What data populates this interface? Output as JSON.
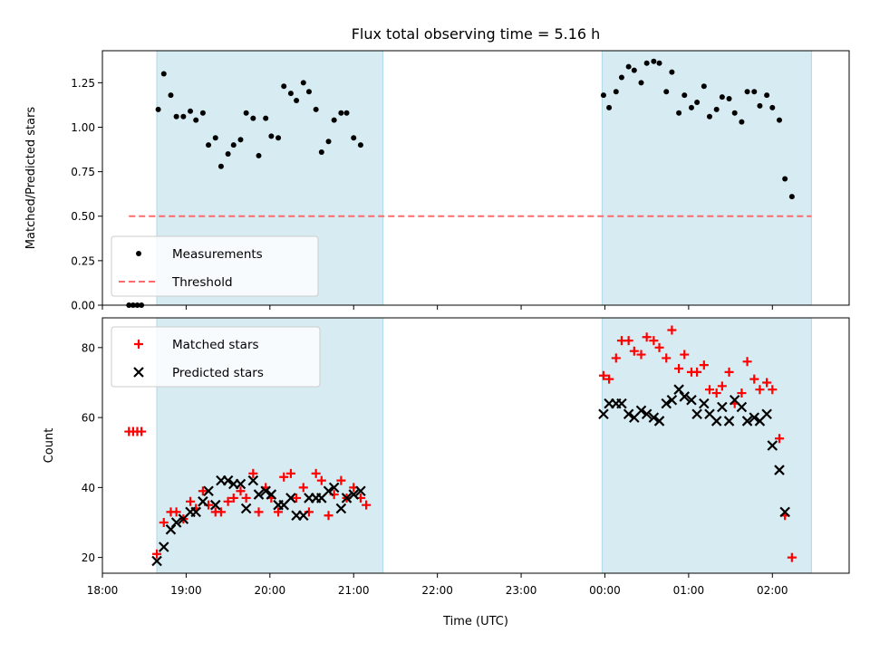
{
  "title": "Flux total observing time = 5.16 h",
  "colors": {
    "shade": "#add8e6",
    "measurement": "#000000",
    "threshold": "#ff6b6b",
    "matched": "#ff0000",
    "predicted": "#000000"
  },
  "chart_data": [
    {
      "type": "scatter",
      "ylabel": "Matched/Predicted stars",
      "xlabel": "",
      "xlim": [
        "18:00",
        "02:55"
      ],
      "ylim": [
        0,
        1.43
      ],
      "yticks": [
        "0.00",
        "0.25",
        "0.50",
        "0.75",
        "1.00",
        "1.25"
      ],
      "xticks": [
        "18:00",
        "19:00",
        "20:00",
        "21:00",
        "22:00",
        "23:00",
        "00:00",
        "01:00",
        "02:00"
      ],
      "show_xtick_labels": false,
      "shaded_intervals": [
        [
          "18:39",
          "21:21"
        ],
        [
          "23:58",
          "02:28"
        ]
      ],
      "legend": "lower-left",
      "series": [
        {
          "name": "Measurements",
          "marker": "dot",
          "points": [
            [
              "18:19",
              0.0
            ],
            [
              "18:22",
              0.0
            ],
            [
              "18:25",
              0.0
            ],
            [
              "18:28",
              0.0
            ],
            [
              "18:40",
              1.1
            ],
            [
              "18:44",
              1.3
            ],
            [
              "18:49",
              1.18
            ],
            [
              "18:53",
              1.06
            ],
            [
              "18:58",
              1.06
            ],
            [
              "19:03",
              1.09
            ],
            [
              "19:07",
              1.04
            ],
            [
              "19:12",
              1.08
            ],
            [
              "19:16",
              0.9
            ],
            [
              "19:21",
              0.94
            ],
            [
              "19:25",
              0.78
            ],
            [
              "19:30",
              0.85
            ],
            [
              "19:34",
              0.9
            ],
            [
              "19:39",
              0.93
            ],
            [
              "19:43",
              1.08
            ],
            [
              "19:48",
              1.05
            ],
            [
              "19:52",
              0.84
            ],
            [
              "19:57",
              1.05
            ],
            [
              "20:01",
              0.95
            ],
            [
              "20:06",
              0.94
            ],
            [
              "20:10",
              1.23
            ],
            [
              "20:15",
              1.19
            ],
            [
              "20:19",
              1.15
            ],
            [
              "20:24",
              1.25
            ],
            [
              "20:28",
              1.2
            ],
            [
              "20:33",
              1.1
            ],
            [
              "20:37",
              0.86
            ],
            [
              "20:42",
              0.92
            ],
            [
              "20:46",
              1.04
            ],
            [
              "20:51",
              1.08
            ],
            [
              "20:55",
              1.08
            ],
            [
              "21:00",
              0.94
            ],
            [
              "21:05",
              0.9
            ],
            [
              "23:59",
              1.18
            ],
            [
              "00:03",
              1.11
            ],
            [
              "00:08",
              1.2
            ],
            [
              "00:12",
              1.28
            ],
            [
              "00:17",
              1.34
            ],
            [
              "00:21",
              1.32
            ],
            [
              "00:26",
              1.25
            ],
            [
              "00:30",
              1.36
            ],
            [
              "00:35",
              1.37
            ],
            [
              "00:39",
              1.36
            ],
            [
              "00:44",
              1.2
            ],
            [
              "00:48",
              1.31
            ],
            [
              "00:53",
              1.08
            ],
            [
              "00:57",
              1.18
            ],
            [
              "01:02",
              1.11
            ],
            [
              "01:06",
              1.14
            ],
            [
              "01:11",
              1.23
            ],
            [
              "01:15",
              1.06
            ],
            [
              "01:20",
              1.1
            ],
            [
              "01:24",
              1.17
            ],
            [
              "01:29",
              1.16
            ],
            [
              "01:33",
              1.08
            ],
            [
              "01:38",
              1.03
            ],
            [
              "01:42",
              1.2
            ],
            [
              "01:47",
              1.2
            ],
            [
              "01:51",
              1.12
            ],
            [
              "01:56",
              1.18
            ],
            [
              "02:00",
              1.11
            ],
            [
              "02:05",
              1.04
            ],
            [
              "02:09",
              0.71
            ],
            [
              "02:14",
              0.61
            ]
          ]
        },
        {
          "name": "Threshold",
          "marker": "dashed-line",
          "points": [
            [
              "18:19",
              0.5
            ],
            [
              "02:28",
              0.5
            ]
          ]
        }
      ]
    },
    {
      "type": "scatter",
      "ylabel": "Count",
      "xlabel": "Time (UTC)",
      "xlim": [
        "18:00",
        "02:55"
      ],
      "ylim": [
        15.5,
        88.5
      ],
      "yticks": [
        "20",
        "40",
        "60",
        "80"
      ],
      "xticks": [
        "18:00",
        "19:00",
        "20:00",
        "21:00",
        "22:00",
        "23:00",
        "00:00",
        "01:00",
        "02:00"
      ],
      "show_xtick_labels": true,
      "shaded_intervals": [
        [
          "18:39",
          "21:21"
        ],
        [
          "23:58",
          "02:28"
        ]
      ],
      "legend": "upper-left",
      "series": [
        {
          "name": "Matched stars",
          "marker": "plus",
          "points": [
            [
              "18:19",
              56
            ],
            [
              "18:22",
              56
            ],
            [
              "18:25",
              56
            ],
            [
              "18:28",
              56
            ],
            [
              "18:39",
              21
            ],
            [
              "18:44",
              30
            ],
            [
              "18:49",
              33
            ],
            [
              "18:53",
              33
            ],
            [
              "18:58",
              31
            ],
            [
              "19:03",
              36
            ],
            [
              "19:07",
              34
            ],
            [
              "19:12",
              39
            ],
            [
              "19:16",
              35
            ],
            [
              "19:21",
              33
            ],
            [
              "19:25",
              33
            ],
            [
              "19:30",
              36
            ],
            [
              "19:34",
              37
            ],
            [
              "19:39",
              39
            ],
            [
              "19:43",
              37
            ],
            [
              "19:48",
              44
            ],
            [
              "19:52",
              33
            ],
            [
              "19:57",
              40
            ],
            [
              "20:01",
              37
            ],
            [
              "20:06",
              33
            ],
            [
              "20:10",
              43
            ],
            [
              "20:15",
              44
            ],
            [
              "20:19",
              37
            ],
            [
              "20:24",
              40
            ],
            [
              "20:28",
              33
            ],
            [
              "20:33",
              44
            ],
            [
              "20:37",
              42
            ],
            [
              "20:42",
              32
            ],
            [
              "20:46",
              38
            ],
            [
              "20:51",
              42
            ],
            [
              "20:55",
              37
            ],
            [
              "21:00",
              40
            ],
            [
              "21:05",
              37
            ],
            [
              "21:09",
              35
            ],
            [
              "23:59",
              72
            ],
            [
              "00:03",
              71
            ],
            [
              "00:08",
              77
            ],
            [
              "00:12",
              82
            ],
            [
              "00:17",
              82
            ],
            [
              "00:21",
              79
            ],
            [
              "00:26",
              78
            ],
            [
              "00:30",
              83
            ],
            [
              "00:35",
              82
            ],
            [
              "00:39",
              80
            ],
            [
              "00:44",
              77
            ],
            [
              "00:48",
              85
            ],
            [
              "00:53",
              74
            ],
            [
              "00:57",
              78
            ],
            [
              "01:02",
              73
            ],
            [
              "01:06",
              73
            ],
            [
              "01:11",
              75
            ],
            [
              "01:15",
              68
            ],
            [
              "01:20",
              67
            ],
            [
              "01:24",
              69
            ],
            [
              "01:29",
              73
            ],
            [
              "01:33",
              64
            ],
            [
              "01:38",
              67
            ],
            [
              "01:42",
              76
            ],
            [
              "01:47",
              71
            ],
            [
              "01:51",
              68
            ],
            [
              "01:56",
              70
            ],
            [
              "02:00",
              68
            ],
            [
              "02:05",
              54
            ],
            [
              "02:09",
              32
            ],
            [
              "02:14",
              20
            ]
          ]
        },
        {
          "name": "Predicted stars",
          "marker": "cross",
          "points": [
            [
              "18:39",
              19
            ],
            [
              "18:44",
              23
            ],
            [
              "18:49",
              28
            ],
            [
              "18:53",
              30
            ],
            [
              "18:58",
              31
            ],
            [
              "19:03",
              33
            ],
            [
              "19:07",
              33
            ],
            [
              "19:12",
              36
            ],
            [
              "19:16",
              39
            ],
            [
              "19:21",
              35
            ],
            [
              "19:25",
              42
            ],
            [
              "19:30",
              42
            ],
            [
              "19:34",
              41
            ],
            [
              "19:39",
              41
            ],
            [
              "19:43",
              34
            ],
            [
              "19:48",
              42
            ],
            [
              "19:52",
              38
            ],
            [
              "19:57",
              39
            ],
            [
              "20:01",
              38
            ],
            [
              "20:06",
              35
            ],
            [
              "20:10",
              35
            ],
            [
              "20:15",
              37
            ],
            [
              "20:19",
              32
            ],
            [
              "20:24",
              32
            ],
            [
              "20:28",
              37
            ],
            [
              "20:33",
              37
            ],
            [
              "20:37",
              37
            ],
            [
              "20:42",
              39
            ],
            [
              "20:46",
              40
            ],
            [
              "20:51",
              34
            ],
            [
              "20:55",
              37
            ],
            [
              "21:00",
              38
            ],
            [
              "21:05",
              39
            ],
            [
              "23:59",
              61
            ],
            [
              "00:03",
              64
            ],
            [
              "00:08",
              64
            ],
            [
              "00:12",
              64
            ],
            [
              "00:17",
              61
            ],
            [
              "00:21",
              60
            ],
            [
              "00:26",
              62
            ],
            [
              "00:30",
              61
            ],
            [
              "00:35",
              60
            ],
            [
              "00:39",
              59
            ],
            [
              "00:44",
              64
            ],
            [
              "00:48",
              65
            ],
            [
              "00:53",
              68
            ],
            [
              "00:57",
              66
            ],
            [
              "01:02",
              65
            ],
            [
              "01:06",
              61
            ],
            [
              "01:11",
              64
            ],
            [
              "01:15",
              61
            ],
            [
              "01:20",
              59
            ],
            [
              "01:24",
              63
            ],
            [
              "01:29",
              59
            ],
            [
              "01:33",
              65
            ],
            [
              "01:38",
              63
            ],
            [
              "01:42",
              59
            ],
            [
              "01:47",
              60
            ],
            [
              "01:51",
              59
            ],
            [
              "01:56",
              61
            ],
            [
              "02:00",
              52
            ],
            [
              "02:05",
              45
            ],
            [
              "02:09",
              33
            ]
          ]
        }
      ]
    }
  ]
}
